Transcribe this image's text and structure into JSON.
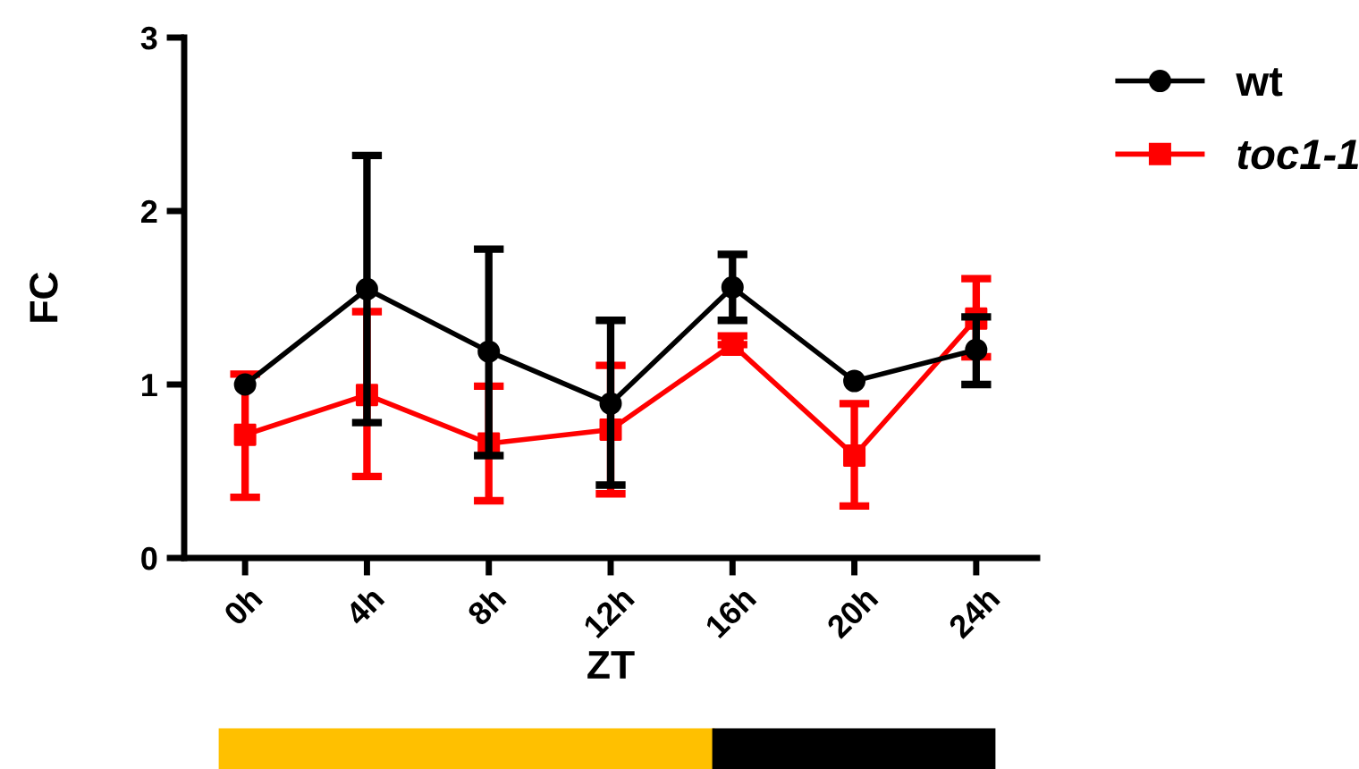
{
  "chart_data": {
    "type": "line",
    "xlabel": "ZT",
    "ylabel": "FC",
    "categories": [
      "0h",
      "4h",
      "8h",
      "12h",
      "16h",
      "20h",
      "24h"
    ],
    "ylim": [
      0,
      3
    ],
    "yticks": [
      0,
      1,
      2,
      3
    ],
    "legend": "top right",
    "grid": false,
    "series": [
      {
        "name": "wt",
        "color": "#000000",
        "marker": "circle",
        "values": [
          1.0,
          1.55,
          1.19,
          0.89,
          1.56,
          1.02,
          1.2
        ],
        "errors": [
          null,
          [
            0.78,
            2.32
          ],
          [
            0.59,
            1.78
          ],
          [
            0.42,
            1.37
          ],
          [
            1.37,
            1.75
          ],
          null,
          [
            1.0,
            1.39
          ]
        ]
      },
      {
        "name": "toc1-1",
        "color": "#ff0000",
        "marker": "square",
        "values": [
          0.71,
          0.94,
          0.66,
          0.74,
          1.23,
          0.59,
          1.38
        ],
        "errors": [
          [
            0.35,
            1.06
          ],
          [
            0.47,
            1.42
          ],
          [
            0.33,
            0.99
          ],
          [
            0.37,
            1.11
          ],
          [
            1.23,
            1.28
          ],
          [
            0.3,
            0.89
          ],
          [
            1.16,
            1.61
          ]
        ]
      }
    ]
  }
}
